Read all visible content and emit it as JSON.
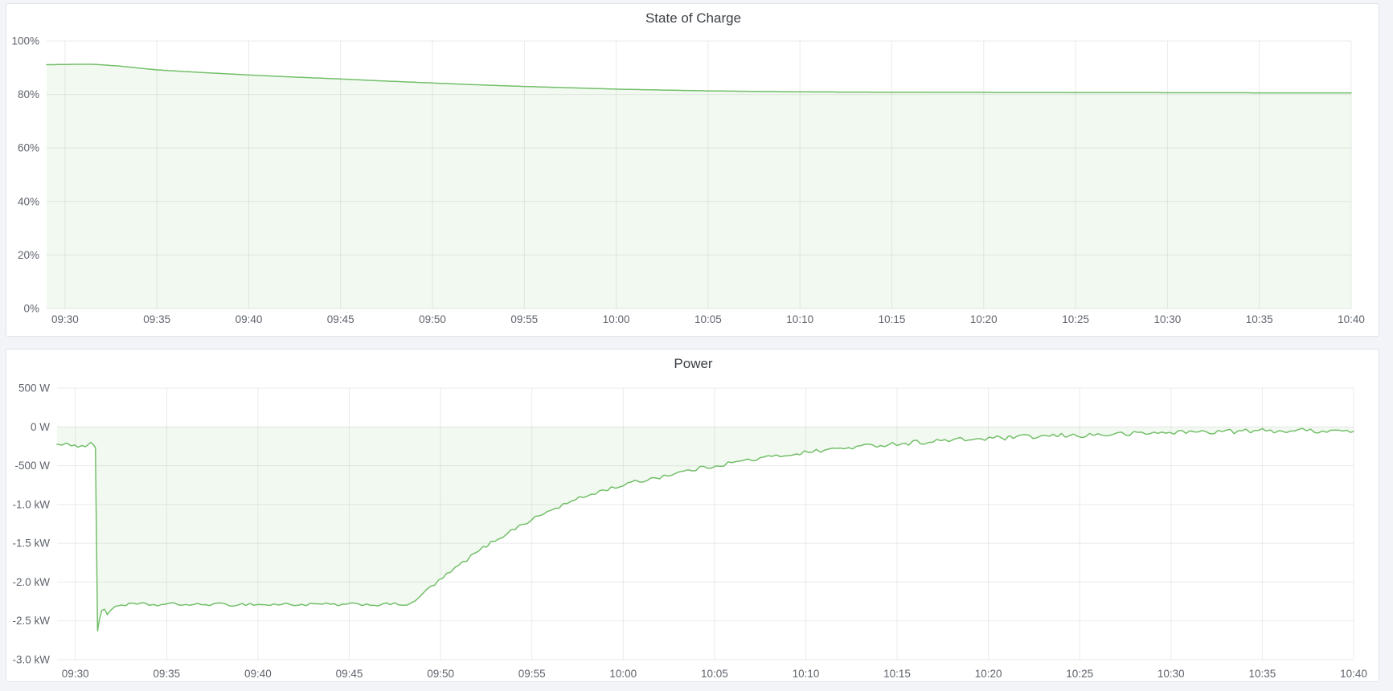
{
  "page": {
    "background_color": "#f3f4f8",
    "panel_background": "#ffffff",
    "panel_border_color": "#dfe2e9"
  },
  "chart_data": [
    {
      "type": "area",
      "title": "State of Charge",
      "unit": "percent",
      "color": "#73bf69",
      "fill_opacity": 0.09,
      "grid_color": "rgba(60,70,85,0.11)",
      "legend": "none",
      "grid": true,
      "x_min": -1,
      "x_max": 70,
      "y_min": 0,
      "y_max": 100,
      "fill_to": 0,
      "quantize": 0.05,
      "noise_seed": 7,
      "noise_segments": [],
      "x_ticks": [
        {
          "t": 0,
          "label": "09:30"
        },
        {
          "t": 5,
          "label": "09:35"
        },
        {
          "t": 10,
          "label": "09:40"
        },
        {
          "t": 15,
          "label": "09:45"
        },
        {
          "t": 20,
          "label": "09:50"
        },
        {
          "t": 25,
          "label": "09:55"
        },
        {
          "t": 30,
          "label": "10:00"
        },
        {
          "t": 35,
          "label": "10:05"
        },
        {
          "t": 40,
          "label": "10:10"
        },
        {
          "t": 45,
          "label": "10:15"
        },
        {
          "t": 50,
          "label": "10:20"
        },
        {
          "t": 55,
          "label": "10:25"
        },
        {
          "t": 60,
          "label": "10:30"
        },
        {
          "t": 65,
          "label": "10:35"
        },
        {
          "t": 70,
          "label": "10:40"
        }
      ],
      "y_ticks": [
        {
          "v": 100,
          "label": "100%"
        },
        {
          "v": 80,
          "label": "80%"
        },
        {
          "v": 60,
          "label": "60%"
        },
        {
          "v": 40,
          "label": "40%"
        },
        {
          "v": 20,
          "label": "20%"
        },
        {
          "v": 0,
          "label": "0%"
        }
      ],
      "points": [
        [
          -1,
          91.15
        ],
        [
          0,
          91.2
        ],
        [
          0.7,
          91.3
        ],
        [
          1.5,
          91.3
        ],
        [
          2.2,
          91.0
        ],
        [
          3,
          90.6
        ],
        [
          4,
          89.9
        ],
        [
          5,
          89.2
        ],
        [
          6,
          88.8
        ],
        [
          7.5,
          88.2
        ],
        [
          10,
          87.3
        ],
        [
          12.5,
          86.5
        ],
        [
          15,
          85.8
        ],
        [
          17.5,
          85.0
        ],
        [
          20,
          84.3
        ],
        [
          22.5,
          83.6
        ],
        [
          25,
          83.0
        ],
        [
          27.5,
          82.5
        ],
        [
          30,
          82.0
        ],
        [
          32.5,
          81.65
        ],
        [
          35,
          81.35
        ],
        [
          37.5,
          81.15
        ],
        [
          40,
          81.0
        ],
        [
          42.5,
          80.9
        ],
        [
          45,
          80.85
        ],
        [
          50,
          80.78
        ],
        [
          55,
          80.72
        ],
        [
          60,
          80.67
        ],
        [
          65,
          80.62
        ],
        [
          70,
          80.58
        ]
      ]
    },
    {
      "type": "area",
      "title": "Power",
      "unit": "watt",
      "color": "#73bf69",
      "fill_opacity": 0.09,
      "grid_color": "rgba(60,70,85,0.11)",
      "legend": "none",
      "grid": true,
      "x_min": -1,
      "x_max": 70,
      "y_min": -3000,
      "y_max": 500,
      "fill_to": 0,
      "quantize": 0,
      "noise_seed": 1234,
      "noise_segments": [
        [
          -1,
          1.05,
          10
        ],
        [
          1.05,
          2.3,
          0
        ],
        [
          2.3,
          18.6,
          20
        ],
        [
          18.6,
          30,
          26
        ],
        [
          30,
          45,
          28
        ],
        [
          45,
          70,
          33
        ]
      ],
      "x_ticks": [
        {
          "t": 0,
          "label": "09:30"
        },
        {
          "t": 5,
          "label": "09:35"
        },
        {
          "t": 10,
          "label": "09:40"
        },
        {
          "t": 15,
          "label": "09:45"
        },
        {
          "t": 20,
          "label": "09:50"
        },
        {
          "t": 25,
          "label": "09:55"
        },
        {
          "t": 30,
          "label": "10:00"
        },
        {
          "t": 35,
          "label": "10:05"
        },
        {
          "t": 40,
          "label": "10:10"
        },
        {
          "t": 45,
          "label": "10:15"
        },
        {
          "t": 50,
          "label": "10:20"
        },
        {
          "t": 55,
          "label": "10:25"
        },
        {
          "t": 60,
          "label": "10:30"
        },
        {
          "t": 65,
          "label": "10:35"
        },
        {
          "t": 70,
          "label": "10:40"
        }
      ],
      "y_ticks": [
        {
          "v": 500,
          "label": "500 W"
        },
        {
          "v": 0,
          "label": "0 W"
        },
        {
          "v": -500,
          "label": "-500 W"
        },
        {
          "v": -1000,
          "label": "-1.0 kW"
        },
        {
          "v": -1500,
          "label": "-1.5 kW"
        },
        {
          "v": -2000,
          "label": "-2.0 kW"
        },
        {
          "v": -2500,
          "label": "-2.5 kW"
        },
        {
          "v": -3000,
          "label": "-3.0 kW"
        }
      ],
      "points": [
        [
          -1,
          -215
        ],
        [
          -0.75,
          -240
        ],
        [
          -0.5,
          -218
        ],
        [
          -0.25,
          -245
        ],
        [
          -0.05,
          -225
        ],
        [
          0.15,
          -255
        ],
        [
          0.35,
          -235
        ],
        [
          0.55,
          -262
        ],
        [
          0.7,
          -230
        ],
        [
          0.85,
          -195
        ],
        [
          1.0,
          -225
        ],
        [
          1.1,
          -268
        ],
        [
          1.22,
          -2630
        ],
        [
          1.32,
          -2480
        ],
        [
          1.45,
          -2365
        ],
        [
          1.6,
          -2350
        ],
        [
          1.75,
          -2420
        ],
        [
          1.95,
          -2360
        ],
        [
          2.2,
          -2310
        ],
        [
          2.6,
          -2292
        ],
        [
          3.5,
          -2285
        ],
        [
          4.5,
          -2295
        ],
        [
          5.5,
          -2283
        ],
        [
          6.5,
          -2296
        ],
        [
          7.5,
          -2284
        ],
        [
          8.5,
          -2294
        ],
        [
          9.5,
          -2283
        ],
        [
          10.5,
          -2295
        ],
        [
          11.5,
          -2284
        ],
        [
          12.5,
          -2294
        ],
        [
          13.5,
          -2285
        ],
        [
          14.5,
          -2295
        ],
        [
          15.5,
          -2284
        ],
        [
          16.5,
          -2293
        ],
        [
          17.5,
          -2284
        ],
        [
          18.2,
          -2288
        ],
        [
          18.6,
          -2262
        ],
        [
          19,
          -2150
        ],
        [
          19.5,
          -2060
        ],
        [
          20,
          -1970
        ],
        [
          20.5,
          -1880
        ],
        [
          21,
          -1790
        ],
        [
          21.5,
          -1700
        ],
        [
          22,
          -1615
        ],
        [
          22.5,
          -1535
        ],
        [
          23,
          -1460
        ],
        [
          23.5,
          -1390
        ],
        [
          24,
          -1320
        ],
        [
          24.5,
          -1255
        ],
        [
          25,
          -1195
        ],
        [
          25.5,
          -1135
        ],
        [
          26,
          -1080
        ],
        [
          26.5,
          -1028
        ],
        [
          27,
          -978
        ],
        [
          27.5,
          -932
        ],
        [
          28,
          -888
        ],
        [
          28.5,
          -848
        ],
        [
          29,
          -812
        ],
        [
          29.5,
          -780
        ],
        [
          30,
          -750
        ],
        [
          30.5,
          -722
        ],
        [
          31,
          -695
        ],
        [
          31.5,
          -668
        ],
        [
          32,
          -642
        ],
        [
          32.5,
          -617
        ],
        [
          33,
          -592
        ],
        [
          33.5,
          -568
        ],
        [
          34,
          -545
        ],
        [
          34.5,
          -522
        ],
        [
          35,
          -500
        ],
        [
          35.5,
          -480
        ],
        [
          36,
          -460
        ],
        [
          36.5,
          -442
        ],
        [
          37,
          -424
        ],
        [
          37.5,
          -407
        ],
        [
          38,
          -390
        ],
        [
          38.5,
          -374
        ],
        [
          39,
          -358
        ],
        [
          39.5,
          -343
        ],
        [
          40,
          -328
        ],
        [
          40.5,
          -314
        ],
        [
          41,
          -300
        ],
        [
          41.5,
          -288
        ],
        [
          42,
          -276
        ],
        [
          42.5,
          -265
        ],
        [
          43,
          -254
        ],
        [
          43.5,
          -244
        ],
        [
          44,
          -234
        ],
        [
          44.5,
          -225
        ],
        [
          45,
          -216
        ],
        [
          46,
          -200
        ],
        [
          47,
          -186
        ],
        [
          48,
          -173
        ],
        [
          49,
          -161
        ],
        [
          50,
          -150
        ],
        [
          51,
          -141
        ],
        [
          52,
          -132
        ],
        [
          53,
          -124
        ],
        [
          54,
          -116
        ],
        [
          55,
          -109
        ],
        [
          56,
          -102
        ],
        [
          57,
          -95
        ],
        [
          58,
          -88
        ],
        [
          59,
          -80
        ],
        [
          60,
          -70
        ],
        [
          61,
          -66
        ],
        [
          62,
          -62
        ],
        [
          63,
          -58
        ],
        [
          64,
          -55
        ],
        [
          65,
          -52
        ],
        [
          66,
          -50
        ],
        [
          67,
          -48
        ],
        [
          68,
          -47
        ],
        [
          69,
          -45
        ],
        [
          70,
          -58
        ]
      ]
    }
  ]
}
